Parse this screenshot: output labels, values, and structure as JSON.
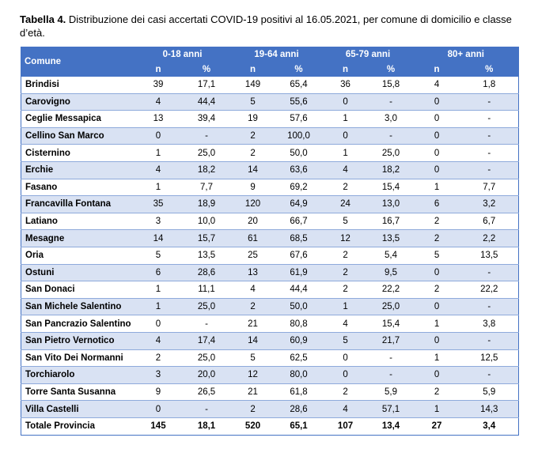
{
  "title": {
    "label": "Tabella 4.",
    "text": " Distribuzione dei casi accertati COVID-19 positivi al 16.05.2021, per comune di domicilio e classe d’età."
  },
  "table": {
    "first_header": "Comune",
    "groups": [
      "0-18 anni",
      "19-64 anni",
      "65-79 anni",
      "80+ anni"
    ],
    "subheaders": [
      "n",
      "%",
      "n",
      "%",
      "n",
      "%",
      "n",
      "%"
    ],
    "rows": [
      [
        "Brindisi",
        "39",
        "17,1",
        "149",
        "65,4",
        "36",
        "15,8",
        "4",
        "1,8"
      ],
      [
        "Carovigno",
        "4",
        "44,4",
        "5",
        "55,6",
        "0",
        "-",
        "0",
        "-"
      ],
      [
        "Ceglie Messapica",
        "13",
        "39,4",
        "19",
        "57,6",
        "1",
        "3,0",
        "0",
        "-"
      ],
      [
        "Cellino San Marco",
        "0",
        "-",
        "2",
        "100,0",
        "0",
        "-",
        "0",
        "-"
      ],
      [
        "Cisternino",
        "1",
        "25,0",
        "2",
        "50,0",
        "1",
        "25,0",
        "0",
        "-"
      ],
      [
        "Erchie",
        "4",
        "18,2",
        "14",
        "63,6",
        "4",
        "18,2",
        "0",
        "-"
      ],
      [
        "Fasano",
        "1",
        "7,7",
        "9",
        "69,2",
        "2",
        "15,4",
        "1",
        "7,7"
      ],
      [
        "Francavilla Fontana",
        "35",
        "18,9",
        "120",
        "64,9",
        "24",
        "13,0",
        "6",
        "3,2"
      ],
      [
        "Latiano",
        "3",
        "10,0",
        "20",
        "66,7",
        "5",
        "16,7",
        "2",
        "6,7"
      ],
      [
        "Mesagne",
        "14",
        "15,7",
        "61",
        "68,5",
        "12",
        "13,5",
        "2",
        "2,2"
      ],
      [
        "Oria",
        "5",
        "13,5",
        "25",
        "67,6",
        "2",
        "5,4",
        "5",
        "13,5"
      ],
      [
        "Ostuni",
        "6",
        "28,6",
        "13",
        "61,9",
        "2",
        "9,5",
        "0",
        "-"
      ],
      [
        "San Donaci",
        "1",
        "11,1",
        "4",
        "44,4",
        "2",
        "22,2",
        "2",
        "22,2"
      ],
      [
        "San Michele Salentino",
        "1",
        "25,0",
        "2",
        "50,0",
        "1",
        "25,0",
        "0",
        "-"
      ],
      [
        "San Pancrazio Salentino",
        "0",
        "-",
        "21",
        "80,8",
        "4",
        "15,4",
        "1",
        "3,8"
      ],
      [
        "San Pietro Vernotico",
        "4",
        "17,4",
        "14",
        "60,9",
        "5",
        "21,7",
        "0",
        "-"
      ],
      [
        "San Vito Dei Normanni",
        "2",
        "25,0",
        "5",
        "62,5",
        "0",
        "-",
        "1",
        "12,5"
      ],
      [
        "Torchiarolo",
        "3",
        "20,0",
        "12",
        "80,0",
        "0",
        "-",
        "0",
        "-"
      ],
      [
        "Torre Santa Susanna",
        "9",
        "26,5",
        "21",
        "61,8",
        "2",
        "5,9",
        "2",
        "5,9"
      ],
      [
        "Villa Castelli",
        "0",
        "-",
        "2",
        "28,6",
        "4",
        "57,1",
        "1",
        "14,3"
      ]
    ],
    "total": [
      "Totale Provincia",
      "145",
      "18,1",
      "520",
      "65,1",
      "107",
      "13,4",
      "27",
      "3,4"
    ]
  }
}
